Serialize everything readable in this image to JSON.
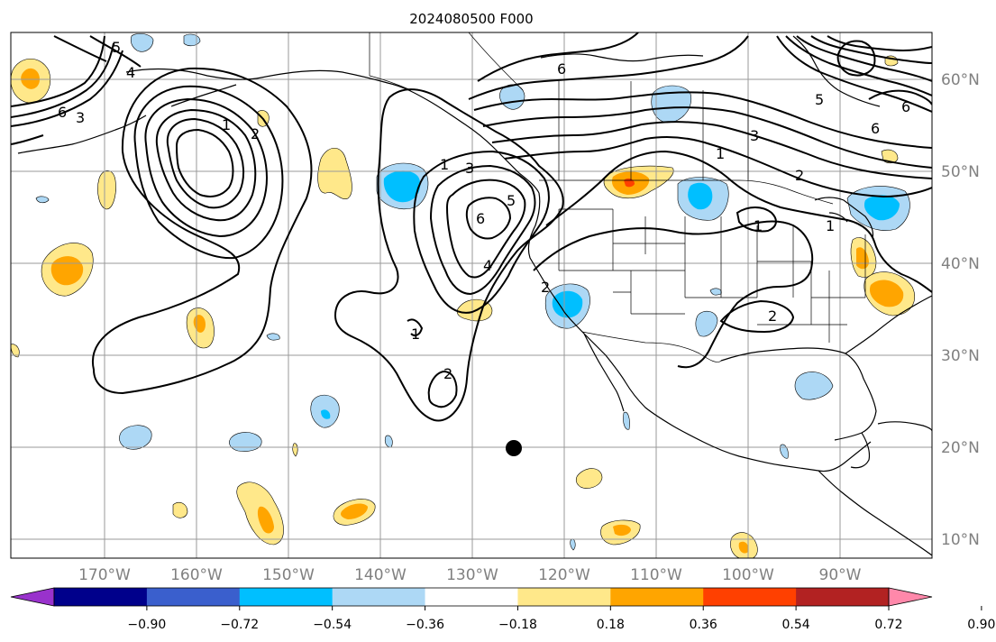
{
  "title": "2024080500 F000",
  "longitude_labels": [
    "170°W",
    "160°W",
    "150°W",
    "140°W",
    "130°W",
    "120°W",
    "110°W",
    "100°W",
    "90°W"
  ],
  "latitude_labels": [
    "60°N",
    "50°N",
    "40°N",
    "30°N",
    "20°N",
    "10°N"
  ],
  "colorbar": {
    "ticks": [
      "−0.90",
      "−0.72",
      "−0.54",
      "−0.36",
      "−0.18",
      "0.18",
      "0.36",
      "0.54",
      "0.72",
      "0.90"
    ],
    "colors": [
      "#9932cc",
      "#00008b",
      "#3a5fcd",
      "#00bfff",
      "#add8f5",
      "#ffffff",
      "#ffe88a",
      "#ffa500",
      "#ff4000",
      "#b22222",
      "#ff88aa"
    ]
  },
  "contour_labels": [
    "6",
    "3",
    "5",
    "4",
    "2",
    "1",
    "1",
    "2",
    "1",
    "3",
    "5",
    "6",
    "4",
    "1",
    "2",
    "6",
    "3",
    "5",
    "6",
    "1",
    "6",
    "2",
    "1",
    "2"
  ],
  "marker": "filled-circle"
}
